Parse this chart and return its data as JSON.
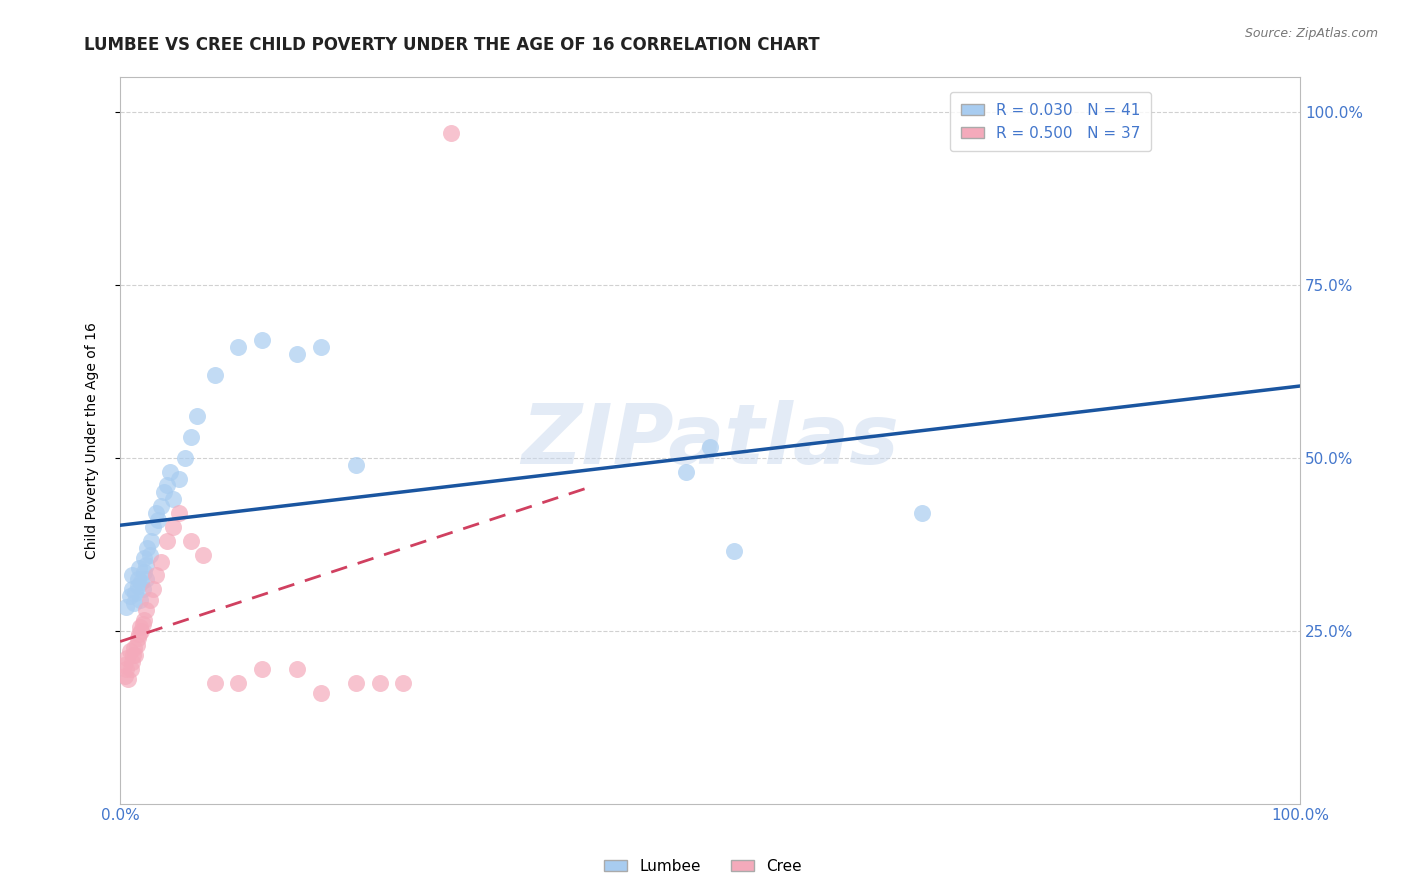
{
  "title": "LUMBEE VS CREE CHILD POVERTY UNDER THE AGE OF 16 CORRELATION CHART",
  "source_text": "Source: ZipAtlas.com",
  "ylabel": "Child Poverty Under the Age of 16",
  "xlim": [
    0.0,
    1.0
  ],
  "ylim": [
    0.0,
    1.05
  ],
  "lumbee_R": "0.030",
  "lumbee_N": "41",
  "cree_R": "0.500",
  "cree_N": "37",
  "lumbee_color": "#A8CCF0",
  "cree_color": "#F4AABB",
  "lumbee_line_color": "#1A55A0",
  "cree_line_color": "#D04060",
  "watermark_color": "#C8D8EE",
  "background_color": "#ffffff",
  "grid_color": "#cccccc",
  "tick_color": "#4477CC",
  "lumbee_scatter_x": [
    0.005,
    0.008,
    0.01,
    0.01,
    0.012,
    0.013,
    0.015,
    0.015,
    0.016,
    0.017,
    0.018,
    0.019,
    0.02,
    0.02,
    0.022,
    0.022,
    0.023,
    0.025,
    0.026,
    0.028,
    0.03,
    0.032,
    0.035,
    0.037,
    0.04,
    0.042,
    0.045,
    0.05,
    0.055,
    0.06,
    0.065,
    0.08,
    0.1,
    0.12,
    0.15,
    0.17,
    0.2,
    0.48,
    0.5,
    0.52,
    0.68
  ],
  "lumbee_scatter_y": [
    0.285,
    0.3,
    0.31,
    0.33,
    0.29,
    0.305,
    0.315,
    0.325,
    0.34,
    0.295,
    0.32,
    0.31,
    0.335,
    0.355,
    0.325,
    0.345,
    0.37,
    0.36,
    0.38,
    0.4,
    0.42,
    0.41,
    0.43,
    0.45,
    0.46,
    0.48,
    0.44,
    0.47,
    0.5,
    0.53,
    0.56,
    0.62,
    0.66,
    0.67,
    0.65,
    0.66,
    0.49,
    0.48,
    0.515,
    0.365,
    0.42
  ],
  "cree_scatter_x": [
    0.003,
    0.004,
    0.005,
    0.006,
    0.007,
    0.008,
    0.009,
    0.01,
    0.011,
    0.012,
    0.013,
    0.014,
    0.015,
    0.016,
    0.017,
    0.018,
    0.019,
    0.02,
    0.022,
    0.025,
    0.028,
    0.03,
    0.035,
    0.04,
    0.045,
    0.05,
    0.06,
    0.07,
    0.08,
    0.1,
    0.12,
    0.15,
    0.17,
    0.2,
    0.22,
    0.24,
    0.28
  ],
  "cree_scatter_y": [
    0.2,
    0.185,
    0.195,
    0.21,
    0.18,
    0.22,
    0.195,
    0.205,
    0.215,
    0.225,
    0.215,
    0.23,
    0.24,
    0.245,
    0.255,
    0.25,
    0.26,
    0.265,
    0.28,
    0.295,
    0.31,
    0.33,
    0.35,
    0.38,
    0.4,
    0.42,
    0.38,
    0.36,
    0.175,
    0.175,
    0.195,
    0.195,
    0.16,
    0.175,
    0.175,
    0.175,
    0.97
  ],
  "title_fontsize": 12,
  "axis_label_fontsize": 10,
  "tick_fontsize": 11,
  "legend_fontsize": 11,
  "source_fontsize": 9
}
